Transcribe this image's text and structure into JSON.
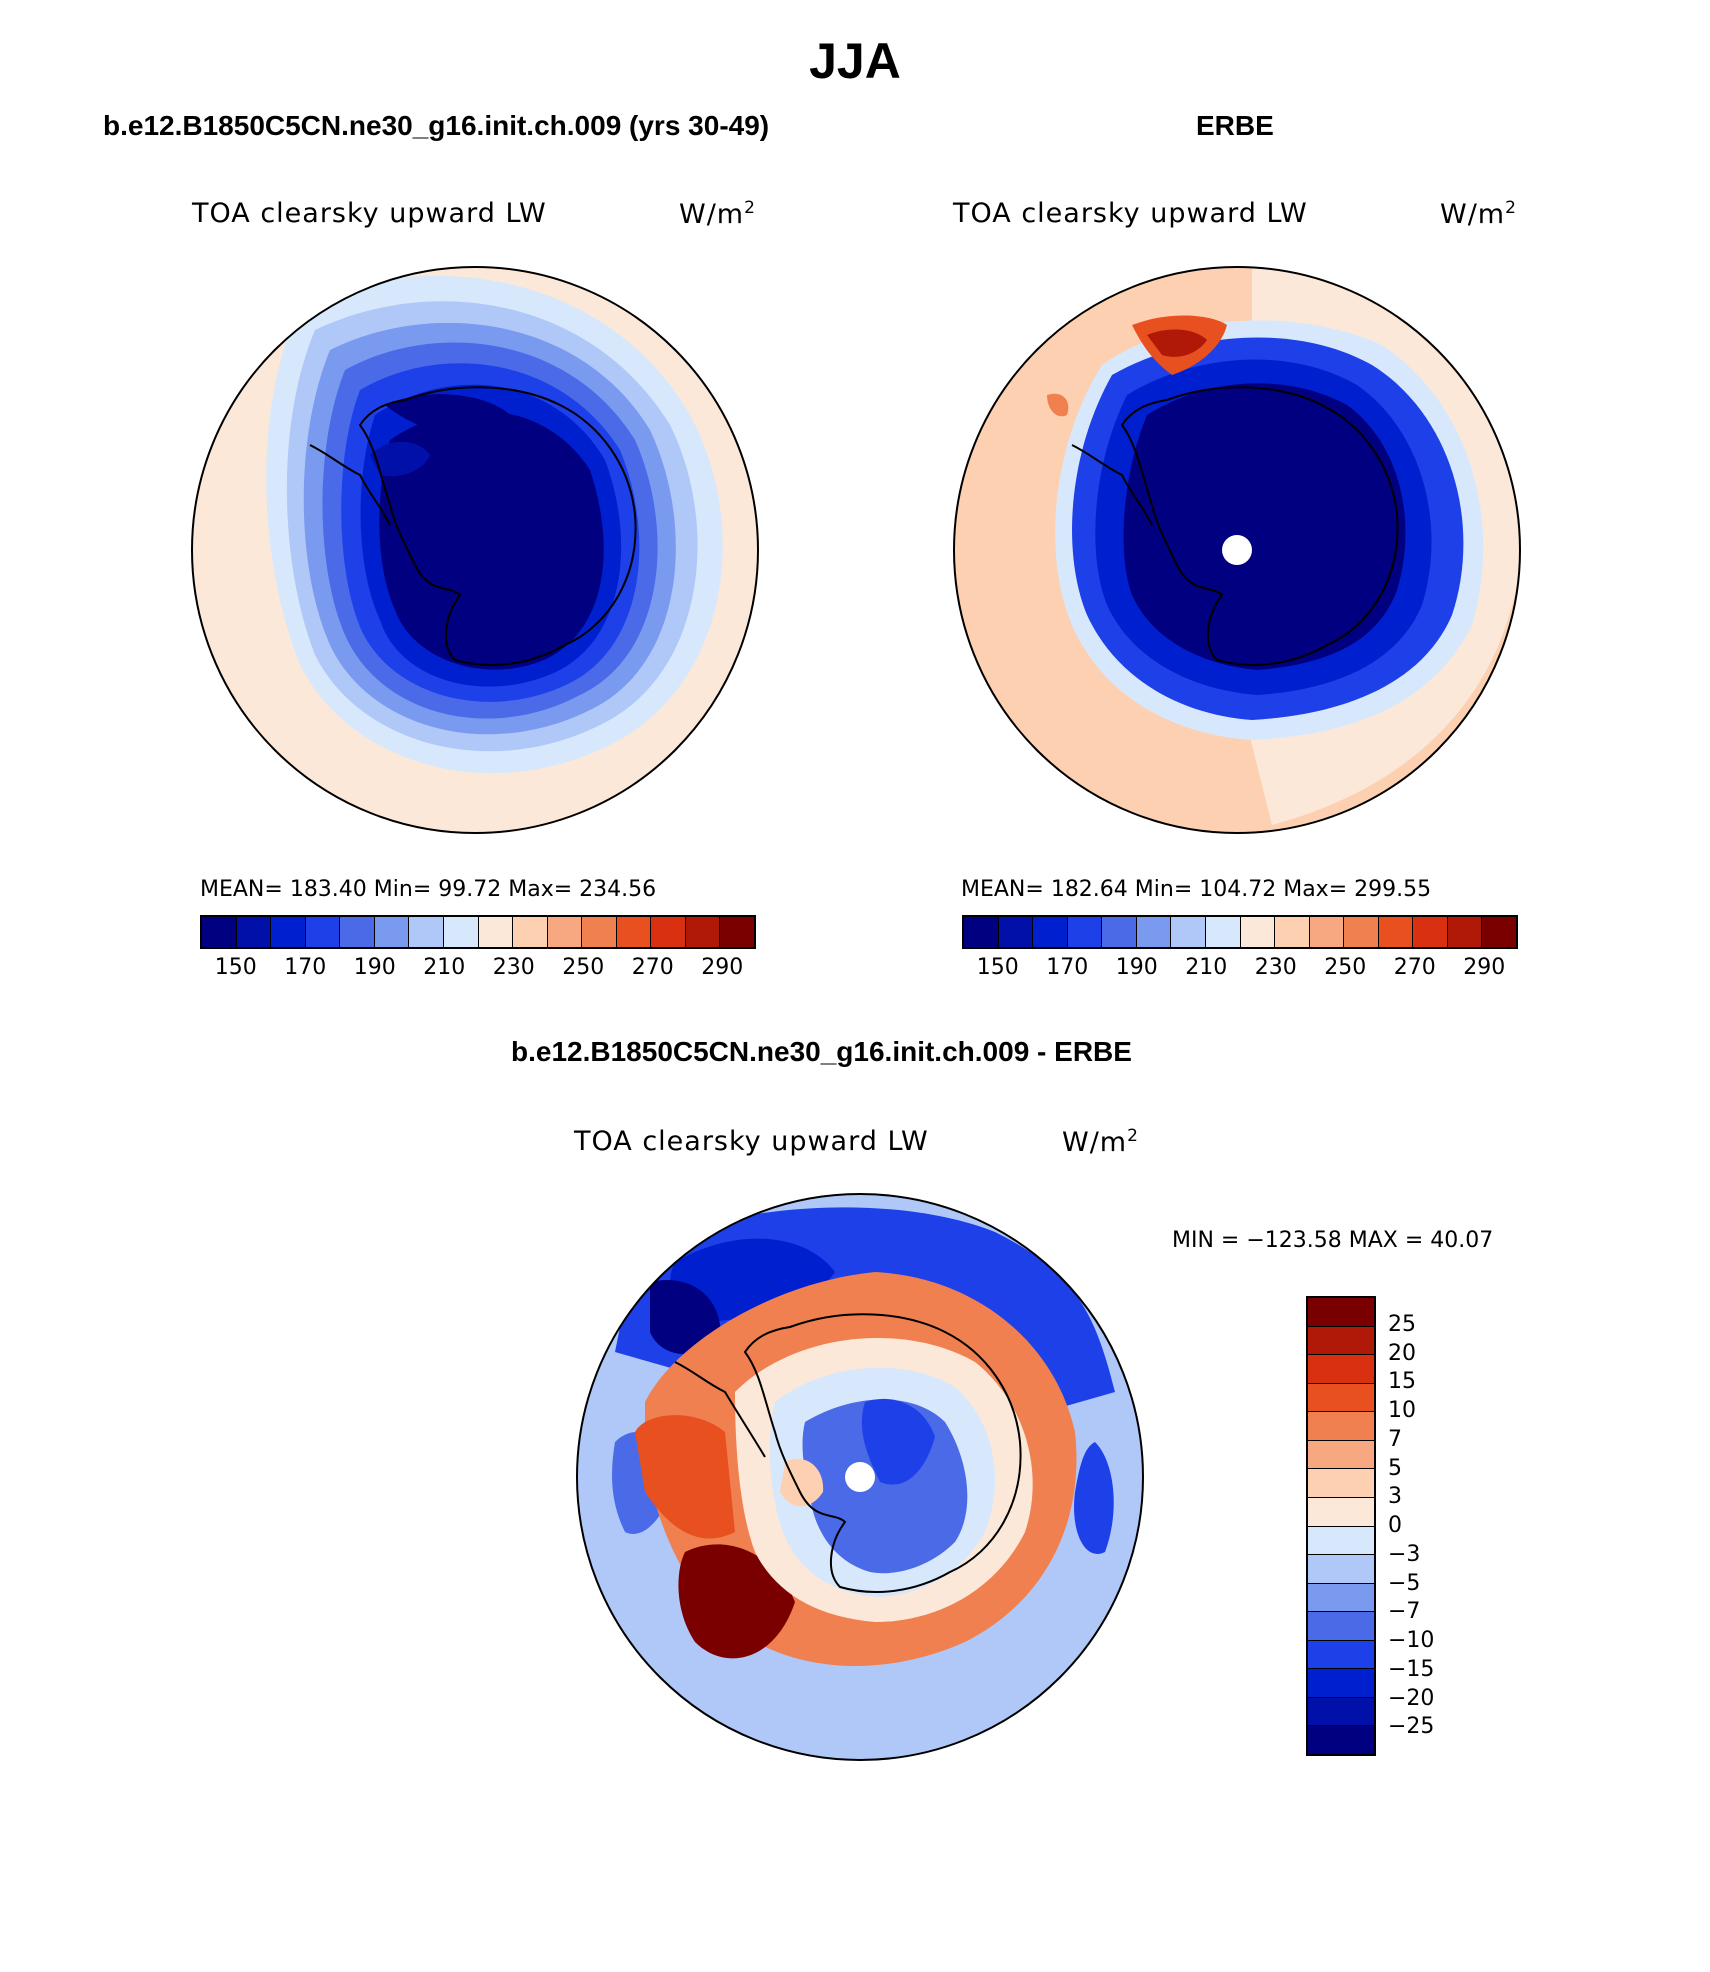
{
  "page": {
    "title": "JJA"
  },
  "panels": {
    "model": {
      "title": "b.e12.B1850C5CN.ne30_g16.init.ch.009 (yrs 30-49)",
      "variable": "TOA clearsky upward LW",
      "units": "W/m",
      "units_exp": "2",
      "stats": "MEAN= 183.40   Min=   99.72   Max= 234.56"
    },
    "obs": {
      "title": "ERBE",
      "variable": "TOA clearsky upward LW",
      "units": "W/m",
      "units_exp": "2",
      "stats": "MEAN= 182.64   Min= 104.72   Max= 299.55"
    },
    "diff": {
      "title": "b.e12.B1850C5CN.ne30_g16.init.ch.009 - ERBE",
      "variable": "TOA clearsky upward LW",
      "units": "W/m",
      "units_exp": "2",
      "stats": "MIN = −123.58 MAX =   40.07"
    }
  },
  "colorbars": {
    "abs": {
      "colors": [
        "#000080",
        "#0010a8",
        "#0020d0",
        "#1e40e8",
        "#4a6ae8",
        "#7a9af0",
        "#b0c8f8",
        "#d8e8fc",
        "#fce8d8",
        "#fcd0b0",
        "#f8a880",
        "#f08050",
        "#e85020",
        "#d83010",
        "#b01808",
        "#7a0000"
      ],
      "labels": [
        "150",
        "170",
        "190",
        "210",
        "230",
        "250",
        "270",
        "290"
      ]
    },
    "diff": {
      "colors": [
        "#000080",
        "#0010a8",
        "#0020d0",
        "#1e40e8",
        "#4a6ae8",
        "#7a9af0",
        "#b0c8f8",
        "#d8e8fc",
        "#fce8d8",
        "#fcd0b0",
        "#f8a880",
        "#f08050",
        "#e85020",
        "#d83010",
        "#b01808",
        "#7a0000"
      ],
      "labels": [
        "−25",
        "−20",
        "−15",
        "−10",
        "−7",
        "−5",
        "−3",
        "0",
        "3",
        "5",
        "7",
        "10",
        "15",
        "20",
        "25"
      ]
    }
  }
}
